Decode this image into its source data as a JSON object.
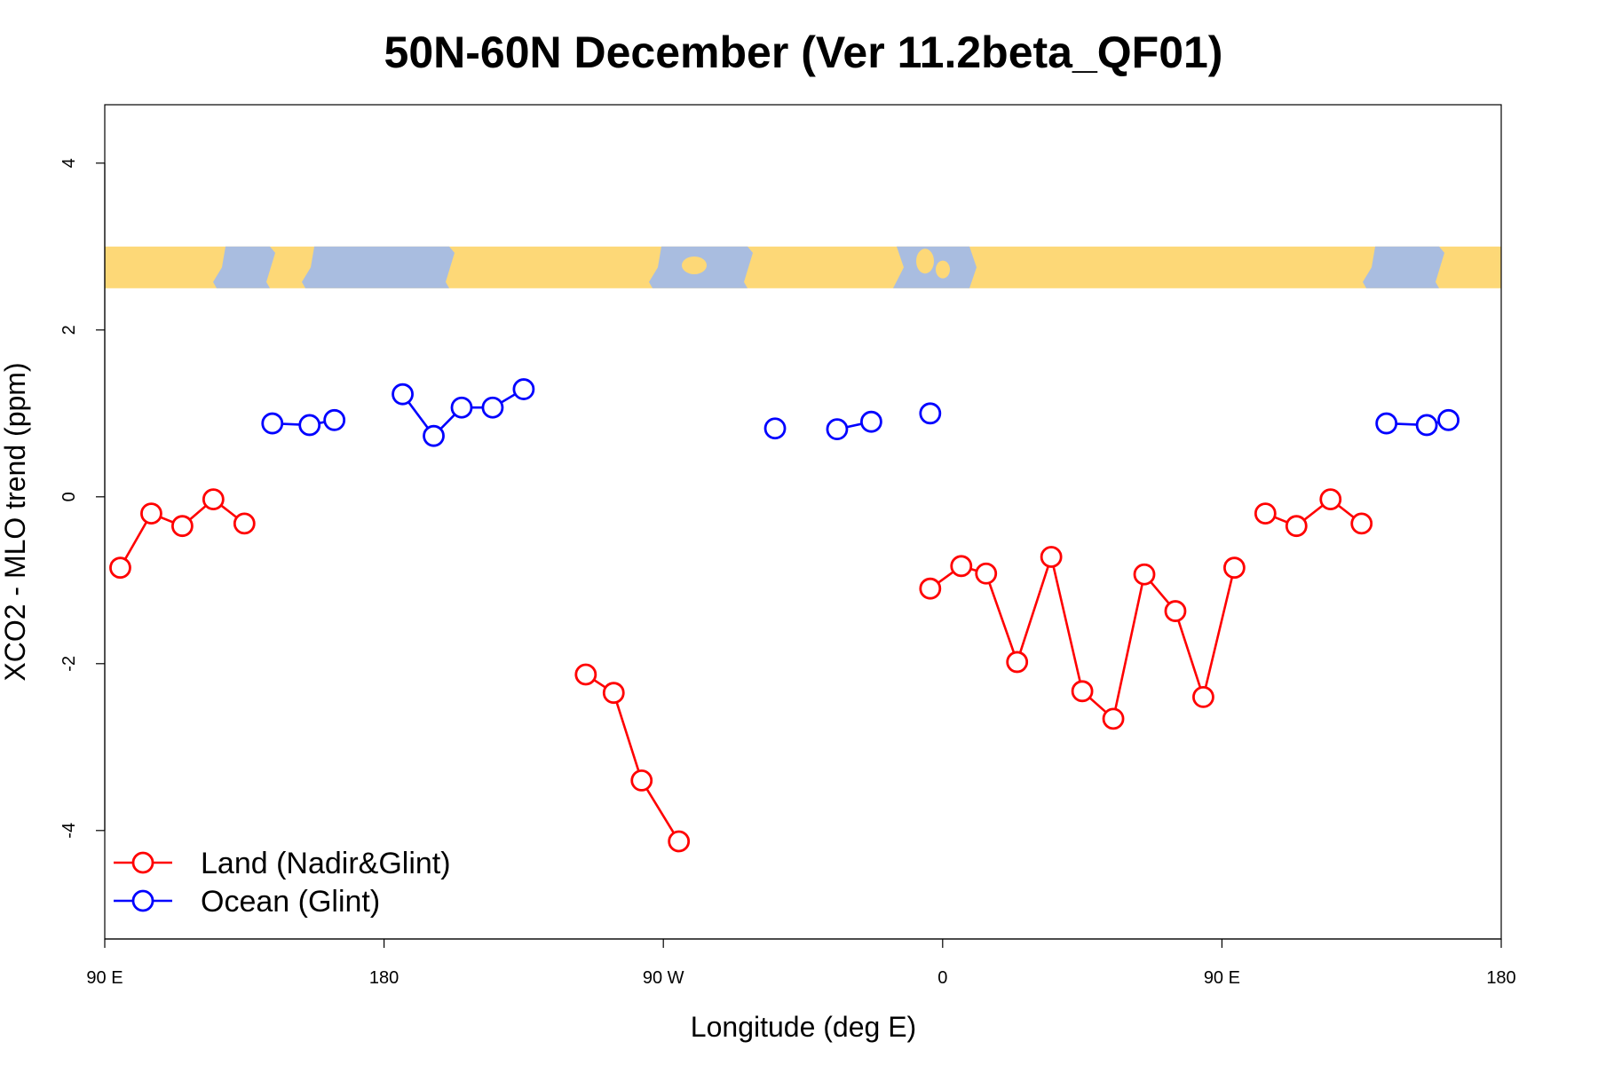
{
  "chart_data": {
    "type": "line",
    "title": "50N-60N December (Ver 11.2beta_QF01)",
    "xlabel": "Longitude (deg E)",
    "ylabel": "XCO2 - MLO trend (ppm)",
    "xlim": [
      90,
      540
    ],
    "ylim": [
      -5.3,
      4.7
    ],
    "x_ticks": [
      {
        "value": 90,
        "label": "90 E"
      },
      {
        "value": 180,
        "label": "180"
      },
      {
        "value": 270,
        "label": "90 W"
      },
      {
        "value": 360,
        "label": "0"
      },
      {
        "value": 450,
        "label": "90 E"
      },
      {
        "value": 540,
        "label": "180"
      }
    ],
    "y_ticks": [
      {
        "value": 4,
        "label": "4"
      },
      {
        "value": 2,
        "label": "2"
      },
      {
        "value": 0,
        "label": "0"
      },
      {
        "value": -2,
        "label": "-2"
      },
      {
        "value": -4,
        "label": "-4"
      }
    ],
    "map_strip": {
      "y_range": [
        2.5,
        3.0
      ],
      "land_color": "#fdd877",
      "ocean_color": "#a9bde0"
    },
    "series": [
      {
        "name": "Land (Nadir&Glint)",
        "color": "#ff0000",
        "segments": [
          [
            [
              95,
              -0.85
            ],
            [
              105,
              -0.2
            ],
            [
              115,
              -0.35
            ],
            [
              125,
              -0.03
            ],
            [
              135,
              -0.32
            ]
          ],
          [
            [
              245,
              -2.13
            ],
            [
              254,
              -2.35
            ],
            [
              263,
              -3.4
            ],
            [
              275,
              -4.13
            ]
          ],
          [
            [
              356,
              -1.1
            ],
            [
              366,
              -0.83
            ],
            [
              374,
              -0.92
            ],
            [
              384,
              -1.98
            ],
            [
              395,
              -0.72
            ],
            [
              405,
              -2.33
            ],
            [
              415,
              -2.66
            ],
            [
              425,
              -0.93
            ],
            [
              435,
              -1.37
            ],
            [
              444,
              -2.4
            ],
            [
              454,
              -0.85
            ]
          ],
          [
            [
              464,
              -0.2
            ],
            [
              474,
              -0.35
            ],
            [
              485,
              -0.03
            ],
            [
              495,
              -0.32
            ]
          ]
        ]
      },
      {
        "name": "Ocean (Glint)",
        "color": "#0000ff",
        "segments": [
          [
            [
              144,
              0.88
            ],
            [
              156,
              0.86
            ],
            [
              164,
              0.92
            ]
          ],
          [
            [
              186,
              1.23
            ],
            [
              196,
              0.73
            ],
            [
              205,
              1.07
            ],
            [
              215,
              1.07
            ],
            [
              225,
              1.29
            ]
          ],
          [
            [
              306,
              0.82
            ]
          ],
          [
            [
              326,
              0.81
            ],
            [
              337,
              0.9
            ]
          ],
          [
            [
              356,
              1.0
            ]
          ],
          [
            [
              503,
              0.88
            ],
            [
              516,
              0.86
            ],
            [
              523,
              0.92
            ]
          ]
        ]
      }
    ],
    "legend": {
      "position": "bottom-left"
    }
  }
}
